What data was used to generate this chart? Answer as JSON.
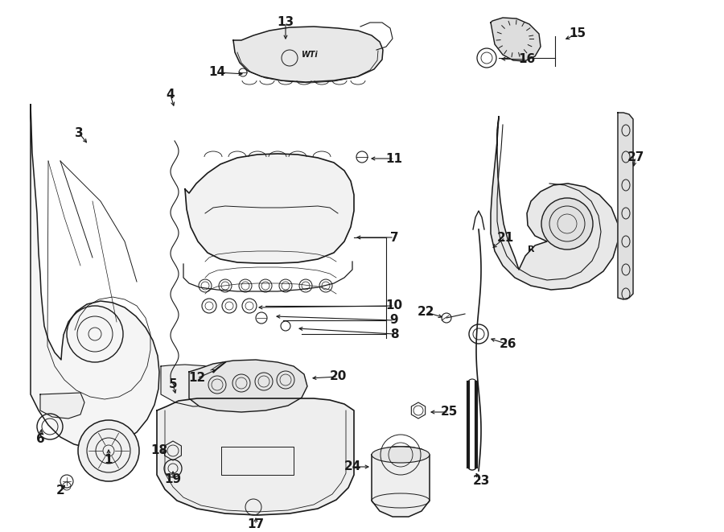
{
  "bg_color": "#ffffff",
  "line_color": "#1a1a1a",
  "lw": 1.0,
  "figsize": [
    9.0,
    6.61
  ],
  "dpi": 100
}
